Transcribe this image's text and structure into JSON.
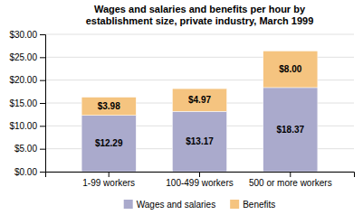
{
  "chart_data": {
    "type": "bar",
    "title": "Wages and salaries and benefits per hour by\nestablishment size, private industry, March 1999",
    "categories": [
      "1-99 workers",
      "100-499 workers",
      "500 or more workers"
    ],
    "series": [
      {
        "name": "Wages and salaries",
        "color": "#aaaacc",
        "values": [
          12.29,
          13.17,
          18.37
        ],
        "value_labels": [
          "$12.29",
          "$13.17",
          "$18.37"
        ]
      },
      {
        "name": "Benefits",
        "color": "#f5c480",
        "values": [
          3.98,
          4.97,
          8.0
        ],
        "value_labels": [
          "$3.98",
          "$4.97",
          "$8.00"
        ]
      }
    ],
    "stacked": true,
    "data_labels": true,
    "ylim": [
      0,
      30
    ],
    "yticks": [
      {
        "value": 0,
        "label": "$0.00"
      },
      {
        "value": 5,
        "label": "$5.00"
      },
      {
        "value": 10,
        "label": "$10.00"
      },
      {
        "value": 15,
        "label": "$15.00"
      },
      {
        "value": 20,
        "label": "$20.00"
      },
      {
        "value": 25,
        "label": "$25.00"
      },
      {
        "value": 30,
        "label": "$30.00"
      }
    ],
    "grid": true,
    "legend": "bottom"
  }
}
